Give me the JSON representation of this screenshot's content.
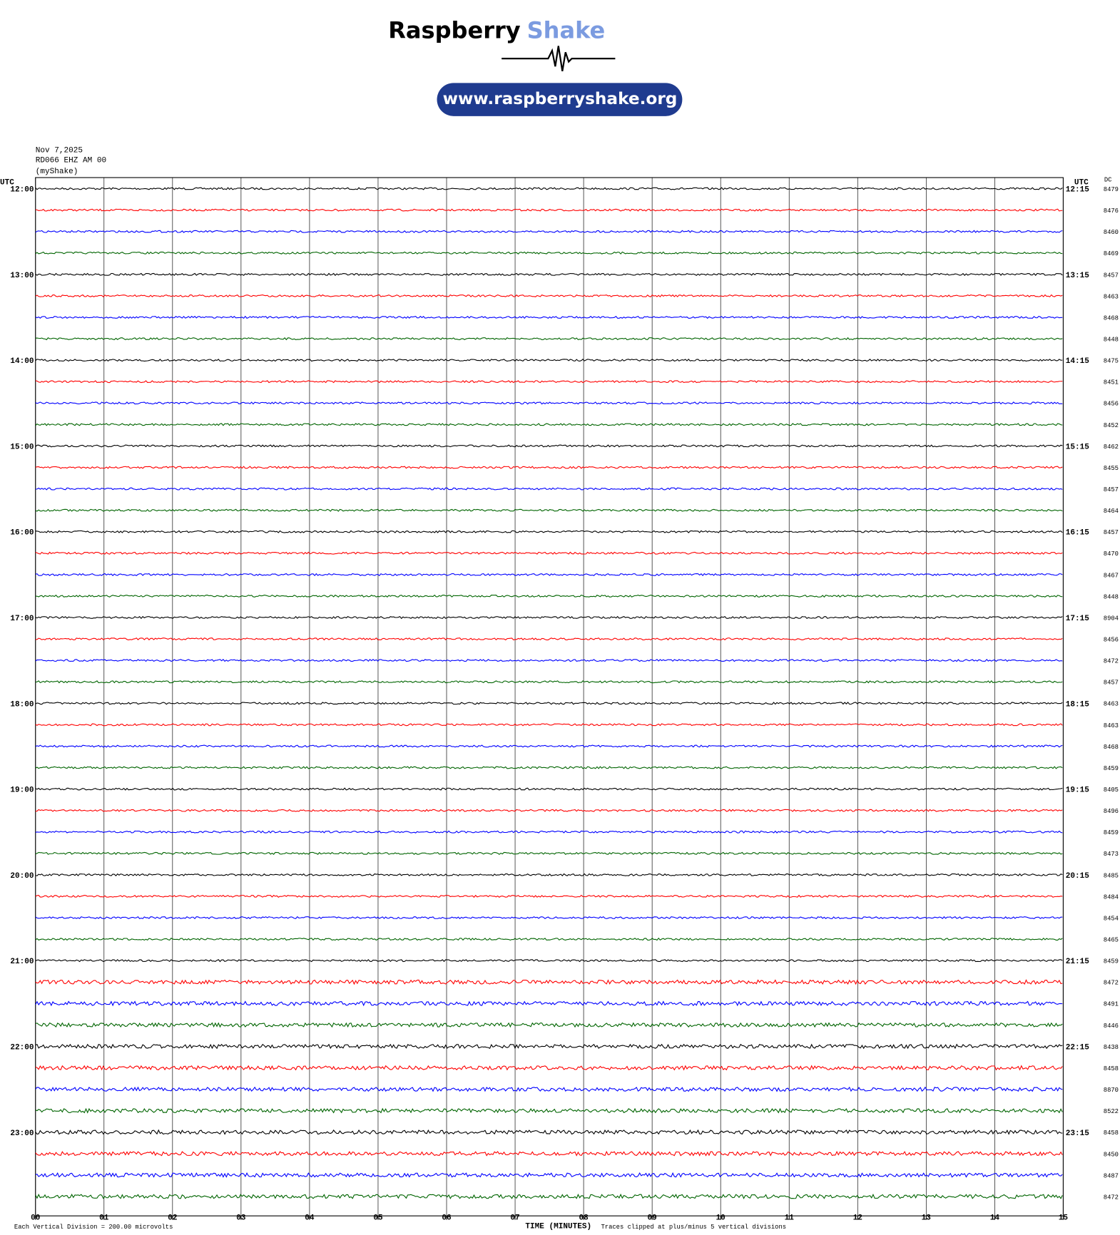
{
  "header": {
    "brand": "Raspberry",
    "brand_accent": "Shake",
    "url": "www.raspberryshake.org"
  },
  "chart_data": {
    "type": "helicorder",
    "date": "Nov 7,2025",
    "station": "RD066 EHZ AM 00",
    "source": "(myShake)",
    "left_axis_label": "UTC",
    "right_axis_label": "UTC",
    "dc_label": "DC",
    "row_labels_left": [
      "12:00",
      "13:00",
      "14:00",
      "15:00",
      "16:00",
      "17:00",
      "18:00",
      "19:00",
      "20:00",
      "21:00",
      "22:00",
      "23:00"
    ],
    "row_labels_right": [
      "12:15",
      "13:15",
      "14:15",
      "15:15",
      "16:15",
      "17:15",
      "18:15",
      "19:15",
      "20:15",
      "21:15",
      "22:15",
      "23:15"
    ],
    "dc_values": [
      8479,
      8476,
      8460,
      8469,
      8457,
      8463,
      8468,
      8448,
      8475,
      8451,
      8456,
      8452,
      8462,
      8455,
      8457,
      8464,
      8457,
      8470,
      8467,
      8448,
      8904,
      8456,
      8472,
      8457,
      8463,
      8463,
      8468,
      8459,
      8405,
      8496,
      8459,
      8473,
      8485,
      8484,
      8454,
      8465,
      8459,
      8472,
      8491,
      8446,
      8438,
      8458,
      8870,
      8522,
      8458,
      8450,
      8487,
      8472
    ],
    "trace_colors": [
      "#000000",
      "#ff0000",
      "#0000ff",
      "#006400"
    ],
    "xlim": [
      0,
      15
    ],
    "xticks": [
      {
        "value": 0,
        "label": "00"
      },
      {
        "value": 1,
        "label": "01"
      },
      {
        "value": 2,
        "label": "02"
      },
      {
        "value": 3,
        "label": "03"
      },
      {
        "value": 4,
        "label": "04"
      },
      {
        "value": 5,
        "label": "05"
      },
      {
        "value": 6,
        "label": "06"
      },
      {
        "value": 7,
        "label": "07"
      },
      {
        "value": 8,
        "label": "08"
      },
      {
        "value": 9,
        "label": "09"
      },
      {
        "value": 10,
        "label": "10"
      },
      {
        "value": 11,
        "label": "11"
      },
      {
        "value": 12,
        "label": "12"
      },
      {
        "value": 13,
        "label": "13"
      },
      {
        "value": 14,
        "label": "14"
      },
      {
        "value": 15,
        "label": "15"
      }
    ],
    "grid": true,
    "xlabel": "TIME (MINUTES)",
    "footer_left": "Each Vertical Division =  200.00 microvolts",
    "footer_right": "Traces clipped at plus/minus 5 vertical divisions"
  }
}
